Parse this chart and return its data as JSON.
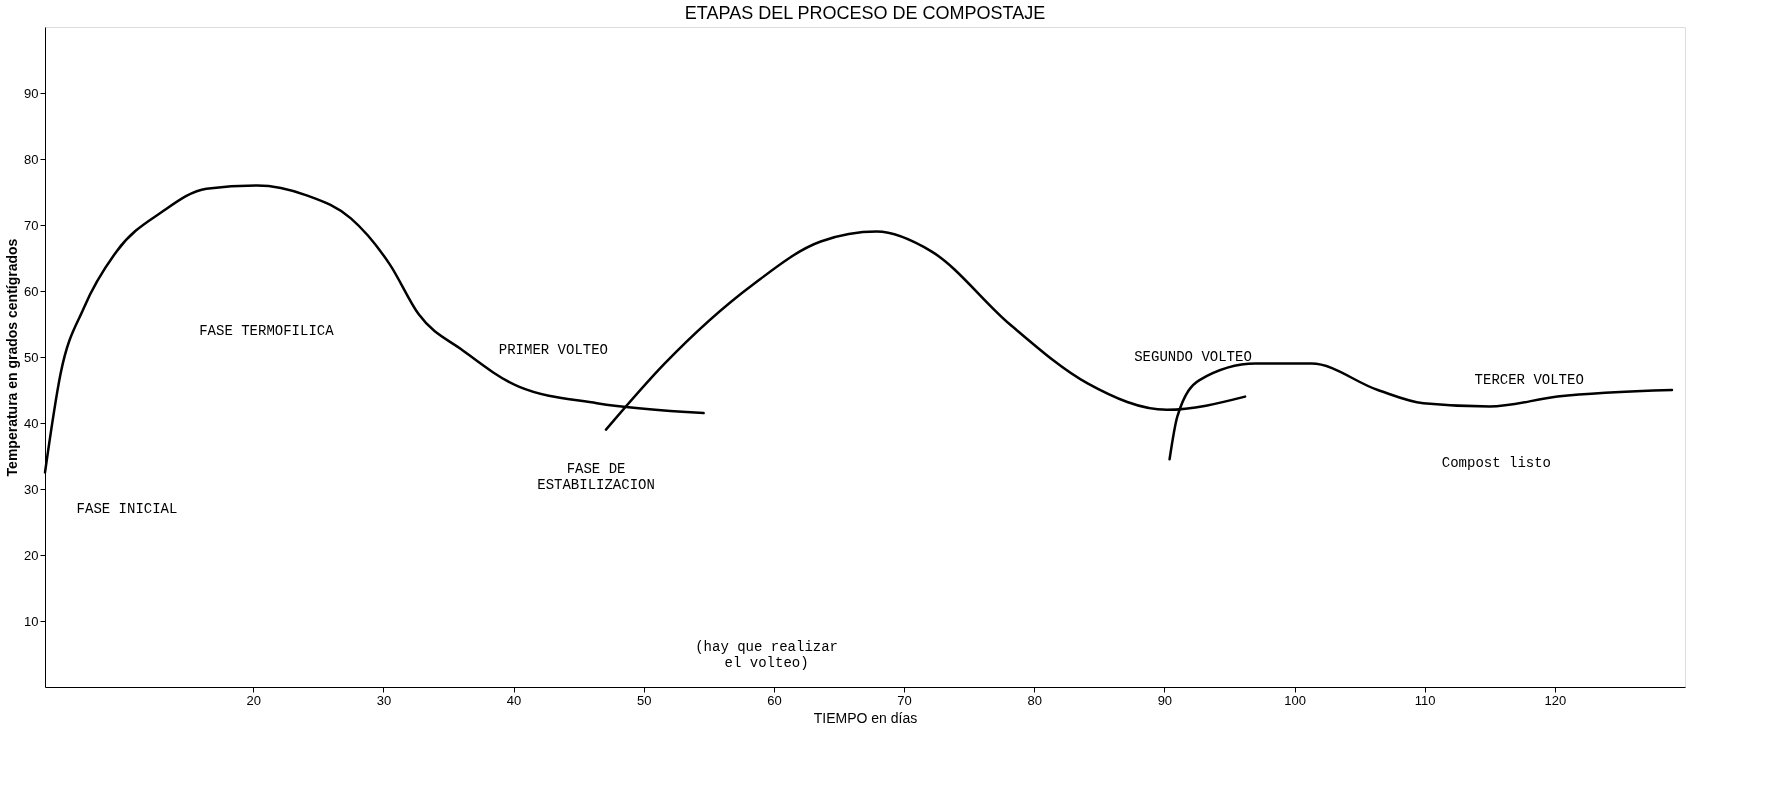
{
  "chart_data": {
    "type": "line",
    "title": "ETAPAS DEL PROCESO DE COMPOSTAJE",
    "xlabel": "TIEMPO en días",
    "ylabel": "Temperatura en grados centígrados",
    "xlim": [
      4,
      130
    ],
    "ylim": [
      0,
      100
    ],
    "xticks": [
      20,
      30,
      40,
      50,
      60,
      70,
      80,
      90,
      100,
      110,
      120
    ],
    "yticks": [
      10,
      20,
      30,
      40,
      50,
      60,
      70,
      80,
      90
    ],
    "grid": false,
    "marker": "none",
    "line_style": "solid",
    "series": [
      {
        "color": "#000000",
        "x": [
          4.0,
          5.2,
          7.0,
          9.5,
          13.0,
          16.4,
          20.3,
          24.1,
          27.5,
          30.5,
          32.7,
          36.1,
          40.4,
          46.4,
          54.6
        ],
        "values": [
          32.5,
          47.5,
          57.5,
          66,
          72,
          75.5,
          76,
          74.5,
          71,
          64,
          56.5,
          51,
          45.5,
          43,
          41.5
        ]
      },
      {
        "color": "#000000",
        "x": [
          47.1,
          51.6,
          58.4,
          63.6,
          67.9,
          72.1,
          78.1,
          84.1,
          90.2,
          96.2
        ],
        "values": [
          39,
          49,
          61,
          67.5,
          69,
          66,
          55,
          46,
          42,
          44
        ]
      },
      {
        "color": "#000000",
        "x": [
          90.4,
          91.0,
          92.7,
          97.0,
          101.3,
          106.4,
          109.9,
          115.0,
          120.2,
          129.0
        ],
        "values": [
          34.5,
          41,
          46.5,
          49,
          49,
          45,
          43,
          42.5,
          44,
          45
        ]
      }
    ],
    "annotations": [
      "FASE INICIAL",
      "FASE TERMOFILICA",
      "PRIMER VOLTEO",
      "FASE DE\nESTABILIZACION",
      "(hay que realizar\nel volteo)",
      "SEGUNDO VOLTEO",
      "TERCER VOLTEO",
      "Compost listo"
    ]
  }
}
